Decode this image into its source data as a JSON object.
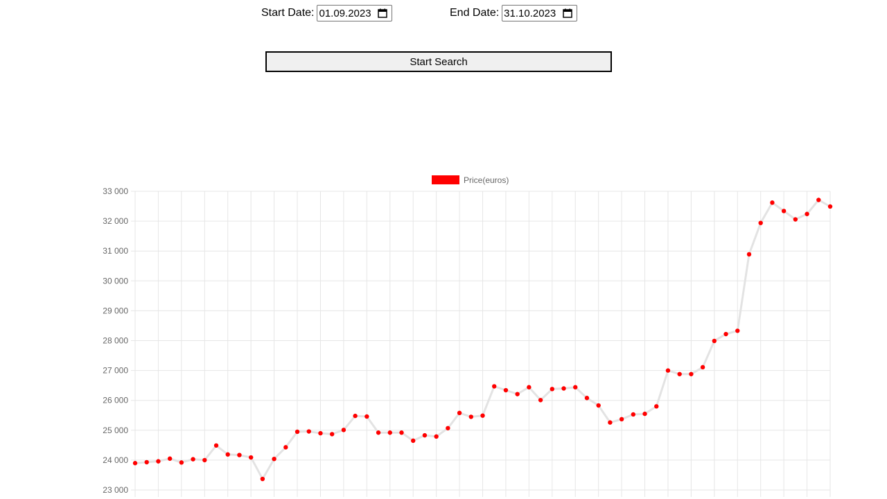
{
  "form": {
    "start_label": "Start Date:",
    "start_value": "01.09.2023",
    "end_label": "End Date:",
    "end_value": "31.10.2023",
    "search_label": "Start Search"
  },
  "chart_data": {
    "type": "line",
    "legend": [
      "Price(euros)"
    ],
    "legend_position": "top",
    "grid": true,
    "ylim": [
      23000,
      33000
    ],
    "yticks": [
      "23 000",
      "24 000",
      "25 000",
      "26 000",
      "27 000",
      "28 000",
      "29 000",
      "30 000",
      "31 000",
      "32 000",
      "33 000"
    ],
    "line_color": "#e3e3e3",
    "point_color": "#ff0000",
    "series": [
      {
        "name": "Price(euros)",
        "values": [
          23900,
          23930,
          23960,
          24050,
          23920,
          24030,
          24000,
          24490,
          24190,
          24170,
          24090,
          23370,
          24040,
          24430,
          24950,
          24960,
          24900,
          24870,
          25010,
          25480,
          25460,
          24920,
          24920,
          24920,
          24650,
          24830,
          24790,
          25070,
          25580,
          25450,
          25490,
          26470,
          26340,
          26210,
          26440,
          26010,
          26380,
          26400,
          26440,
          26080,
          25830,
          25260,
          25370,
          25530,
          25550,
          25800,
          27000,
          26880,
          26880,
          27110,
          27990,
          28220,
          28330,
          30890,
          31940,
          32620,
          32340,
          32060,
          32240,
          32710,
          32490
        ]
      }
    ]
  }
}
